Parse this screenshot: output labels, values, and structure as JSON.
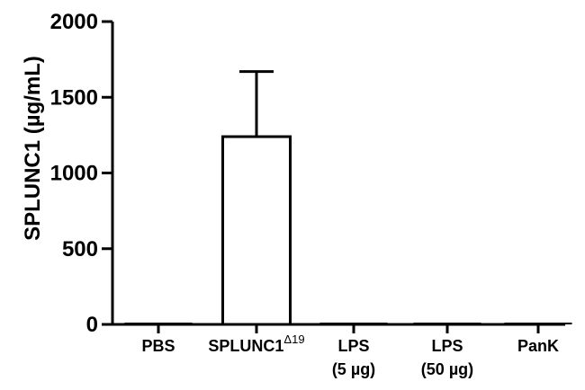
{
  "chart_data": {
    "type": "bar",
    "title": "",
    "xlabel": "",
    "ylabel": "SPLUNC1 (µg/mL)",
    "ylim": [
      0,
      2000
    ],
    "yticks": [
      "0",
      "500",
      "1000",
      "1500",
      "2000"
    ],
    "categories": [
      {
        "line1": "PBS",
        "sup": "",
        "line2": ""
      },
      {
        "line1": "SPLUNC1",
        "sup": "Δ19",
        "line2": ""
      },
      {
        "line1": "LPS",
        "sup": "",
        "line2": "(5 µg)"
      },
      {
        "line1": "LPS",
        "sup": "",
        "line2": "(50 µg)"
      },
      {
        "line1": "PanK",
        "sup": "",
        "line2": ""
      }
    ],
    "values": [
      0,
      1240,
      5,
      5,
      0
    ],
    "error_upper": [
      0,
      1670,
      0,
      0,
      0
    ],
    "grid": false,
    "bar_fill": "#ffffff",
    "bar_stroke": "#000000"
  }
}
